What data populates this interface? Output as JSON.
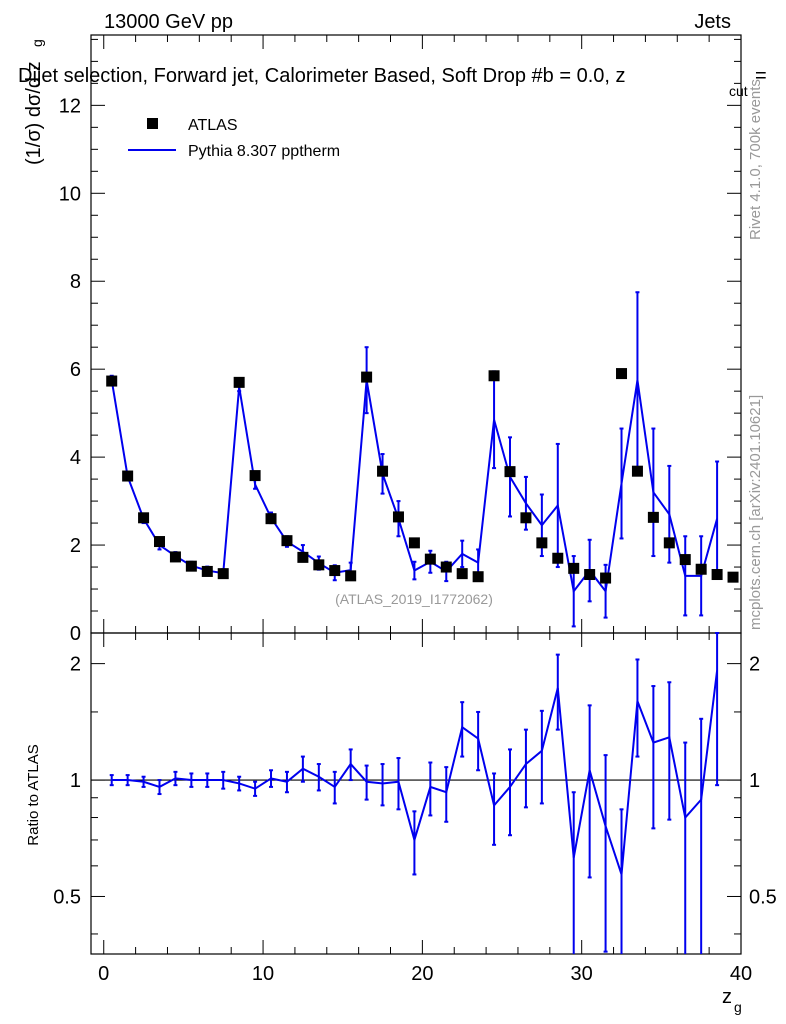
{
  "header": {
    "energy": "13000 GeV pp",
    "category": "Jets",
    "title": "Dijet selection, Forward jet, Calorimeter Based, Soft Drop #b = 0.0, z",
    "title_sub": "cut",
    "title_tail": " ="
  },
  "side_labels": {
    "rivet": "Rivet 4.1.0,  700k events",
    "mcplots": "mcplots.cern.ch [arXiv:2401.10621]"
  },
  "watermark": "(ATLAS_2019_I1772062)",
  "legend": {
    "data_label": "ATLAS",
    "mc_label": "Pythia 8.307 pptherm"
  },
  "colors": {
    "data": "#000000",
    "mc": "#0000ee",
    "side_text": "#999999"
  },
  "chart_data": [
    {
      "id": "main",
      "type": "scatter",
      "ylabel_main": "(1/σ) dσ/d z",
      "ylabel_sub": "g",
      "xlim": [
        -0.8,
        40
      ],
      "ylim": [
        0,
        13.6
      ],
      "yticks": [
        0,
        2,
        4,
        6,
        8,
        10,
        12
      ],
      "ytick_labels": [
        "0",
        "2",
        "4",
        "6",
        "8",
        "10",
        "12"
      ],
      "series": [
        {
          "name": "ATLAS",
          "kind": "markers",
          "x": [
            0.5,
            1.5,
            2.5,
            3.5,
            4.5,
            5.5,
            6.5,
            7.5,
            8.5,
            9.5,
            10.5,
            11.5,
            12.5,
            13.5,
            14.5,
            15.5,
            16.5,
            17.5,
            18.5,
            19.5,
            20.5,
            21.5,
            22.5,
            23.5,
            24.5,
            25.5,
            26.5,
            27.5,
            28.5,
            29.5,
            30.5,
            31.5,
            32.5,
            33.5,
            34.5,
            35.5,
            36.5,
            37.5,
            38.5,
            39.5
          ],
          "y": [
            5.73,
            3.57,
            2.62,
            2.08,
            1.73,
            1.52,
            1.4,
            1.35,
            5.7,
            3.58,
            2.6,
            2.1,
            1.72,
            1.55,
            1.42,
            1.3,
            5.82,
            3.68,
            2.64,
            2.05,
            1.68,
            1.5,
            1.35,
            1.28,
            5.85,
            3.67,
            2.62,
            2.05,
            1.7,
            1.47,
            1.33,
            1.25,
            5.9,
            3.68,
            2.63,
            2.05,
            1.67,
            1.45,
            1.33,
            1.27
          ]
        },
        {
          "name": "Pythia 8.307 pptherm",
          "kind": "line",
          "x": [
            0.5,
            1.5,
            2.5,
            3.5,
            4.5,
            5.5,
            6.5,
            7.5,
            8.5,
            9.5,
            10.5,
            11.5,
            12.5,
            13.5,
            14.5,
            15.5,
            16.5,
            17.5,
            18.5,
            19.5,
            20.5,
            21.5,
            22.5,
            23.5,
            24.5,
            25.5,
            26.5,
            27.5,
            28.5,
            29.5,
            30.5,
            31.5,
            32.5,
            33.5,
            34.5,
            35.5,
            36.5,
            37.5,
            38.5
          ],
          "y": [
            5.75,
            3.56,
            2.6,
            2.0,
            1.75,
            1.53,
            1.42,
            1.36,
            5.6,
            3.38,
            2.62,
            2.08,
            1.85,
            1.59,
            1.37,
            1.43,
            5.75,
            3.62,
            2.6,
            1.42,
            1.62,
            1.4,
            1.8,
            1.6,
            4.85,
            3.55,
            2.95,
            2.45,
            2.9,
            0.95,
            1.42,
            0.95,
            3.4,
            5.75,
            3.2,
            2.7,
            1.3,
            1.3,
            2.6
          ],
          "err": [
            0.1,
            0.09,
            0.1,
            0.1,
            0.09,
            0.09,
            0.09,
            0.09,
            0.1,
            0.1,
            0.12,
            0.12,
            0.15,
            0.15,
            0.17,
            0.17,
            0.75,
            0.45,
            0.4,
            0.2,
            0.25,
            0.22,
            0.3,
            0.3,
            1.1,
            0.9,
            0.6,
            0.7,
            1.4,
            0.8,
            0.7,
            0.6,
            1.25,
            2.0,
            1.45,
            1.1,
            0.9,
            0.9,
            1.3
          ]
        }
      ]
    },
    {
      "id": "ratio",
      "type": "line",
      "xlabel_main": "z",
      "xlabel_sub": "g",
      "ylabel": "Ratio to ATLAS",
      "xlim": [
        -0.8,
        40
      ],
      "ylim_log": [
        0.355,
        2.4
      ],
      "yticks_labeled": [
        0.5,
        1,
        2
      ],
      "ytick_labels": [
        "0.5",
        "1",
        "2"
      ],
      "xticks": [
        0,
        10,
        20,
        30,
        40
      ],
      "xtick_labels": [
        "0",
        "10",
        "20",
        "30",
        "40"
      ],
      "reference_line": 1.0,
      "series": [
        {
          "name": "Pythia 8.307 pptherm / ATLAS",
          "x": [
            0.5,
            1.5,
            2.5,
            3.5,
            4.5,
            5.5,
            6.5,
            7.5,
            8.5,
            9.5,
            10.5,
            11.5,
            12.5,
            13.5,
            14.5,
            15.5,
            16.5,
            17.5,
            18.5,
            19.5,
            20.5,
            21.5,
            22.5,
            23.5,
            24.5,
            25.5,
            26.5,
            27.5,
            28.5,
            29.5,
            30.5,
            31.5,
            32.5,
            33.5,
            34.5,
            35.5,
            36.5,
            37.5,
            38.5
          ],
          "y": [
            1.0,
            1.0,
            0.99,
            0.96,
            1.01,
            1.0,
            1.0,
            1.0,
            0.98,
            0.95,
            1.01,
            0.99,
            1.07,
            1.02,
            0.96,
            1.1,
            0.99,
            0.98,
            0.99,
            0.7,
            0.96,
            0.93,
            1.37,
            1.28,
            0.86,
            0.96,
            1.1,
            1.19,
            1.73,
            0.63,
            1.06,
            0.76,
            0.57,
            1.6,
            1.25,
            1.29,
            0.8,
            0.89,
            1.92
          ],
          "err_low": [
            0.03,
            0.03,
            0.03,
            0.04,
            0.04,
            0.04,
            0.04,
            0.05,
            0.04,
            0.04,
            0.05,
            0.06,
            0.08,
            0.08,
            0.09,
            0.1,
            0.1,
            0.12,
            0.15,
            0.13,
            0.15,
            0.15,
            0.22,
            0.22,
            0.18,
            0.24,
            0.25,
            0.32,
            0.38,
            0.3,
            0.5,
            0.4,
            0.27,
            0.45,
            0.5,
            0.5,
            0.45,
            0.55,
            0.95
          ],
          "err_high": [
            0.03,
            0.03,
            0.03,
            0.04,
            0.04,
            0.04,
            0.04,
            0.05,
            0.04,
            0.04,
            0.05,
            0.06,
            0.08,
            0.08,
            0.09,
            0.1,
            0.1,
            0.12,
            0.15,
            0.13,
            0.15,
            0.15,
            0.22,
            0.22,
            0.18,
            0.24,
            0.25,
            0.32,
            0.38,
            0.3,
            0.5,
            0.4,
            0.27,
            0.45,
            0.5,
            0.5,
            0.45,
            0.55,
            0.95
          ]
        }
      ]
    }
  ]
}
